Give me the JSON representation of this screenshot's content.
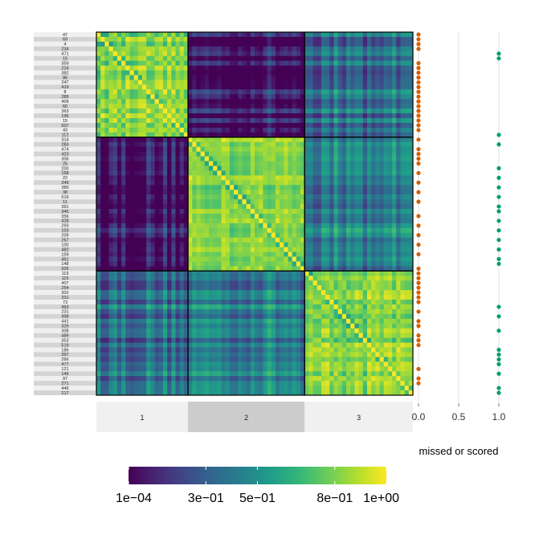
{
  "chart_data": [
    {
      "type": "heatmap",
      "row_labels": [
        "47",
        "69",
        "4",
        "234",
        "471",
        "15",
        "359",
        "224",
        "382",
        "86",
        "247",
        "419",
        "8",
        "289",
        "409",
        "60",
        "363",
        "196",
        "15",
        "507",
        "43",
        "112",
        "314",
        "283",
        "474",
        "423",
        "306",
        "25",
        "200",
        "168",
        "22",
        "349",
        "380",
        "38",
        "516",
        "11",
        "391",
        "345",
        "356",
        "428",
        "293",
        "103",
        "209",
        "267",
        "100",
        "482",
        "159",
        "461",
        "148",
        "505",
        "119",
        "115",
        "407",
        "254",
        "302",
        "331",
        "73",
        "493",
        "231",
        "498",
        "441",
        "326",
        "308",
        "489",
        "353",
        "519",
        "186",
        "397",
        "266",
        "477",
        "121",
        "145",
        "97",
        "271",
        "446",
        "217"
      ],
      "clusters": [
        {
          "label": "1",
          "size": 22
        },
        {
          "label": "2",
          "size": 28
        },
        {
          "label": "3",
          "size": 26
        }
      ],
      "colorbar": {
        "min": 0.0001,
        "max": 1.0,
        "tick_labels": [
          "1e−04",
          "3e−01",
          "5e−01",
          "8e−01",
          "1e+00"
        ],
        "tick_values": [
          0.0001,
          0.3,
          0.5,
          0.8,
          1.0
        ],
        "palette": "viridis"
      },
      "colors": {
        "cluster_band_light": "#f0f0f0",
        "cluster_band_dark": "#cccccc",
        "row_stripe_light": "#f0f0f0",
        "row_stripe_dark": "#d4d4d4"
      }
    },
    {
      "type": "scatter",
      "xlabel": "missed or scored",
      "x_ticks": [
        "0.0",
        "0.5",
        "1.0"
      ],
      "xlim": [
        0,
        1
      ],
      "values": [
        0,
        0,
        0,
        0,
        1,
        1,
        0,
        0,
        0,
        0,
        0,
        0,
        0,
        0,
        0,
        0,
        0,
        0,
        0,
        0,
        0,
        1,
        0,
        1,
        0,
        0,
        0,
        0,
        1,
        0,
        1,
        0,
        1,
        0,
        1,
        0,
        1,
        1,
        0,
        1,
        0,
        1,
        0,
        1,
        0,
        1,
        0,
        1,
        1,
        0,
        0,
        0,
        0,
        0,
        0,
        0,
        0,
        1,
        0,
        1,
        0,
        0,
        1,
        0,
        0,
        0,
        1,
        1,
        1,
        1,
        0,
        1,
        0,
        0,
        1,
        1
      ],
      "colors": {
        "missed": "#d55e00",
        "scored": "#009e73"
      }
    }
  ]
}
